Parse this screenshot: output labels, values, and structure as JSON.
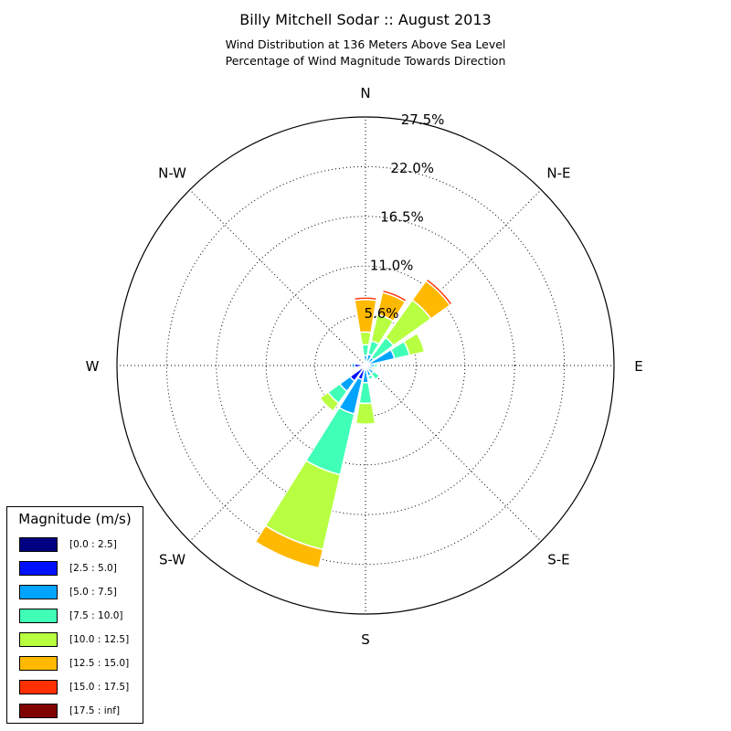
{
  "chart_data": {
    "type": "windrose",
    "title": "Billy Mitchell Sodar :: August 2013",
    "subtitle_lines": [
      "Wind Distribution at 136 Meters Above Sea Level",
      "Percentage of Wind Magnitude Towards Direction"
    ],
    "directions": [
      "N",
      "N-E",
      "E",
      "S-E",
      "S",
      "S-W",
      "W",
      "N-W"
    ],
    "radial_ticks": [
      "5.6%",
      "11.0%",
      "16.5%",
      "22.0%",
      "27.5%"
    ],
    "radial_tick_values": [
      5.6,
      11.0,
      16.5,
      22.0,
      27.5
    ],
    "rmax": 27.5,
    "grid": true,
    "legend_title": "Magnitude (m/s)",
    "legend_position": "lower-left",
    "bins": [
      {
        "label": "[0.0 : 2.5]",
        "color": "#000080"
      },
      {
        "label": "[2.5 : 5.0]",
        "color": "#0010ff"
      },
      {
        "label": "[5.0 : 7.5]",
        "color": "#00a4ff"
      },
      {
        "label": "[7.5 : 10.0]",
        "color": "#40ffb7"
      },
      {
        "label": "[10.0 : 12.5]",
        "color": "#b7ff40"
      },
      {
        "label": "[12.5 : 15.0]",
        "color": "#ffb900"
      },
      {
        "label": "[15.0 : 17.5]",
        "color": "#ff3000"
      },
      {
        "label": "[17.5 : inf]",
        "color": "#800000"
      }
    ],
    "sectors": [
      {
        "direction_deg": 0,
        "values": [
          0.0,
          0.3,
          0.8,
          1.2,
          1.4,
          3.6,
          0.3,
          0.0
        ]
      },
      {
        "direction_deg": 22.5,
        "values": [
          0.0,
          0.3,
          1.0,
          1.5,
          3.0,
          2.5,
          0.3,
          0.0
        ]
      },
      {
        "direction_deg": 45,
        "values": [
          0.0,
          0.3,
          0.8,
          2.7,
          5.1,
          2.6,
          0.3,
          0.0
        ]
      },
      {
        "direction_deg": 67.5,
        "values": [
          0.0,
          0.3,
          3.0,
          1.7,
          1.7,
          0.0,
          0.0,
          0.0
        ]
      },
      {
        "direction_deg": 90,
        "values": [
          0.0,
          0.3,
          0.7,
          0.3,
          0.0,
          0.0,
          0.0,
          0.0
        ]
      },
      {
        "direction_deg": 112.5,
        "values": [
          0.0,
          0.3,
          0.5,
          0.2,
          0.0,
          0.0,
          0.0,
          0.0
        ]
      },
      {
        "direction_deg": 135,
        "values": [
          0.0,
          0.3,
          0.8,
          0.8,
          0.0,
          0.0,
          0.0,
          0.0
        ]
      },
      {
        "direction_deg": 157.5,
        "values": [
          0.0,
          0.3,
          0.9,
          0.4,
          0.0,
          0.0,
          0.0,
          0.0
        ]
      },
      {
        "direction_deg": 180,
        "values": [
          0.0,
          0.3,
          1.6,
          2.3,
          2.3,
          0.0,
          0.0,
          0.0
        ]
      },
      {
        "direction_deg": 202.5,
        "values": [
          0.0,
          1.6,
          3.9,
          6.9,
          8.5,
          2.1,
          0.0,
          0.0
        ]
      },
      {
        "direction_deg": 225,
        "values": [
          0.1,
          2.0,
          1.4,
          1.6,
          1.1,
          0.0,
          0.0,
          0.0
        ]
      },
      {
        "direction_deg": 247.5,
        "values": [
          0.0,
          0.3,
          0.0,
          0.0,
          0.0,
          0.0,
          0.0,
          0.0
        ]
      },
      {
        "direction_deg": 270,
        "values": [
          0.0,
          1.2,
          0.3,
          0.0,
          0.0,
          0.0,
          0.0,
          0.0
        ]
      },
      {
        "direction_deg": 292.5,
        "values": [
          0.0,
          0.5,
          0.0,
          0.0,
          0.0,
          0.0,
          0.0,
          0.0
        ]
      },
      {
        "direction_deg": 315,
        "values": [
          0.0,
          0.3,
          0.0,
          0.0,
          0.0,
          0.0,
          0.0,
          0.0
        ]
      },
      {
        "direction_deg": 337.5,
        "values": [
          0.0,
          0.3,
          0.0,
          0.0,
          0.0,
          0.0,
          0.0,
          0.0
        ]
      }
    ]
  }
}
